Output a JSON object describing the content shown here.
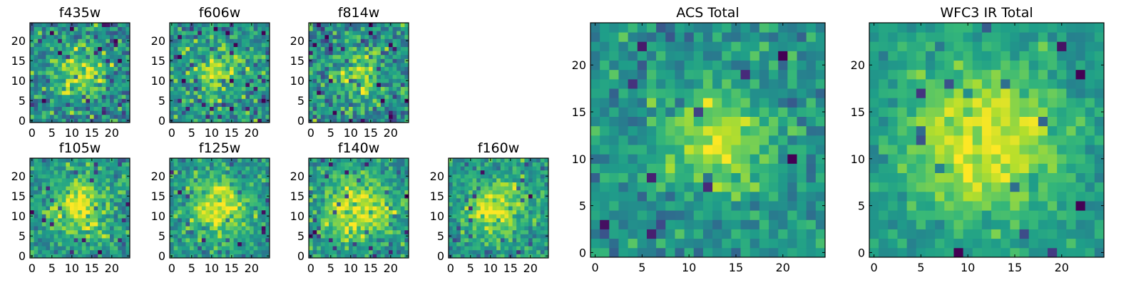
{
  "chart_data": [
    {
      "id": "f435w",
      "type": "heatmap",
      "title": "f435w",
      "xlim": [
        -0.5,
        24.5
      ],
      "ylim": [
        -0.5,
        24.5
      ],
      "xticks": [
        0,
        5,
        10,
        15,
        20
      ],
      "yticks": [
        0,
        5,
        10,
        15,
        20
      ],
      "grid": false,
      "colormap": "viridis",
      "center": [
        12,
        12
      ],
      "peak": 0.62,
      "sigma": 4.5,
      "noise": 0.34,
      "seed": 11
    },
    {
      "id": "f606w",
      "type": "heatmap",
      "title": "f606w",
      "xlim": [
        -0.5,
        24.5
      ],
      "ylim": [
        -0.5,
        24.5
      ],
      "xticks": [
        0,
        5,
        10,
        15,
        20
      ],
      "yticks": [
        0,
        5,
        10,
        15,
        20
      ],
      "grid": false,
      "colormap": "viridis",
      "center": [
        12,
        12
      ],
      "peak": 0.62,
      "sigma": 4.0,
      "noise": 0.34,
      "seed": 23
    },
    {
      "id": "f814w",
      "type": "heatmap",
      "title": "f814w",
      "xlim": [
        -0.5,
        24.5
      ],
      "ylim": [
        -0.5,
        24.5
      ],
      "xticks": [
        0,
        5,
        10,
        15,
        20
      ],
      "yticks": [
        0,
        5,
        10,
        15,
        20
      ],
      "grid": false,
      "colormap": "viridis",
      "center": [
        12,
        12
      ],
      "peak": 0.6,
      "sigma": 4.0,
      "noise": 0.36,
      "seed": 37
    },
    {
      "id": "f105w",
      "type": "heatmap",
      "title": "f105w",
      "xlim": [
        -0.5,
        24.5
      ],
      "ylim": [
        -0.5,
        24.5
      ],
      "xticks": [
        0,
        5,
        10,
        15,
        20
      ],
      "yticks": [
        0,
        5,
        10,
        15,
        20
      ],
      "grid": false,
      "colormap": "viridis",
      "center": [
        12,
        12
      ],
      "peak": 0.7,
      "sigma": 5.5,
      "noise": 0.28,
      "seed": 41
    },
    {
      "id": "f125w",
      "type": "heatmap",
      "title": "f125w",
      "xlim": [
        -0.5,
        24.5
      ],
      "ylim": [
        -0.5,
        24.5
      ],
      "xticks": [
        0,
        5,
        10,
        15,
        20
      ],
      "yticks": [
        0,
        5,
        10,
        15,
        20
      ],
      "grid": false,
      "colormap": "viridis",
      "center": [
        12,
        12
      ],
      "peak": 0.72,
      "sigma": 5.5,
      "noise": 0.27,
      "seed": 53
    },
    {
      "id": "f140w",
      "type": "heatmap",
      "title": "f140w",
      "xlim": [
        -0.5,
        24.5
      ],
      "ylim": [
        -0.5,
        24.5
      ],
      "xticks": [
        0,
        5,
        10,
        15,
        20
      ],
      "yticks": [
        0,
        5,
        10,
        15,
        20
      ],
      "grid": false,
      "colormap": "viridis",
      "center": [
        12,
        12
      ],
      "peak": 0.72,
      "sigma": 6.0,
      "noise": 0.26,
      "seed": 67
    },
    {
      "id": "f160w",
      "type": "heatmap",
      "title": "f160w",
      "xlim": [
        -0.5,
        24.5
      ],
      "ylim": [
        -0.5,
        24.5
      ],
      "xticks": [
        0,
        5,
        10,
        15,
        20
      ],
      "yticks": [
        0,
        5,
        10,
        15,
        20
      ],
      "grid": false,
      "colormap": "viridis",
      "center": [
        11,
        12
      ],
      "peak": 0.72,
      "sigma": 5.5,
      "noise": 0.27,
      "seed": 79
    },
    {
      "id": "acs-total",
      "type": "heatmap",
      "title": "ACS Total",
      "xlim": [
        -0.5,
        24.5
      ],
      "ylim": [
        -0.5,
        24.5
      ],
      "xticks": [
        0,
        5,
        10,
        15,
        20
      ],
      "yticks": [
        0,
        5,
        10,
        15,
        20
      ],
      "grid": false,
      "colormap": "viridis",
      "center": [
        13,
        12
      ],
      "peak": 0.7,
      "sigma": 4.0,
      "noise": 0.22,
      "seed": 97
    },
    {
      "id": "wfc3-ir-total",
      "type": "heatmap",
      "title": "WFC3 IR Total",
      "xlim": [
        -0.5,
        24.5
      ],
      "ylim": [
        -0.5,
        24.5
      ],
      "xticks": [
        0,
        5,
        10,
        15,
        20
      ],
      "yticks": [
        0,
        5,
        10,
        15,
        20
      ],
      "grid": false,
      "colormap": "viridis",
      "center": [
        12,
        12
      ],
      "peak": 0.78,
      "sigma": 6.0,
      "noise": 0.17,
      "seed": 131
    }
  ]
}
